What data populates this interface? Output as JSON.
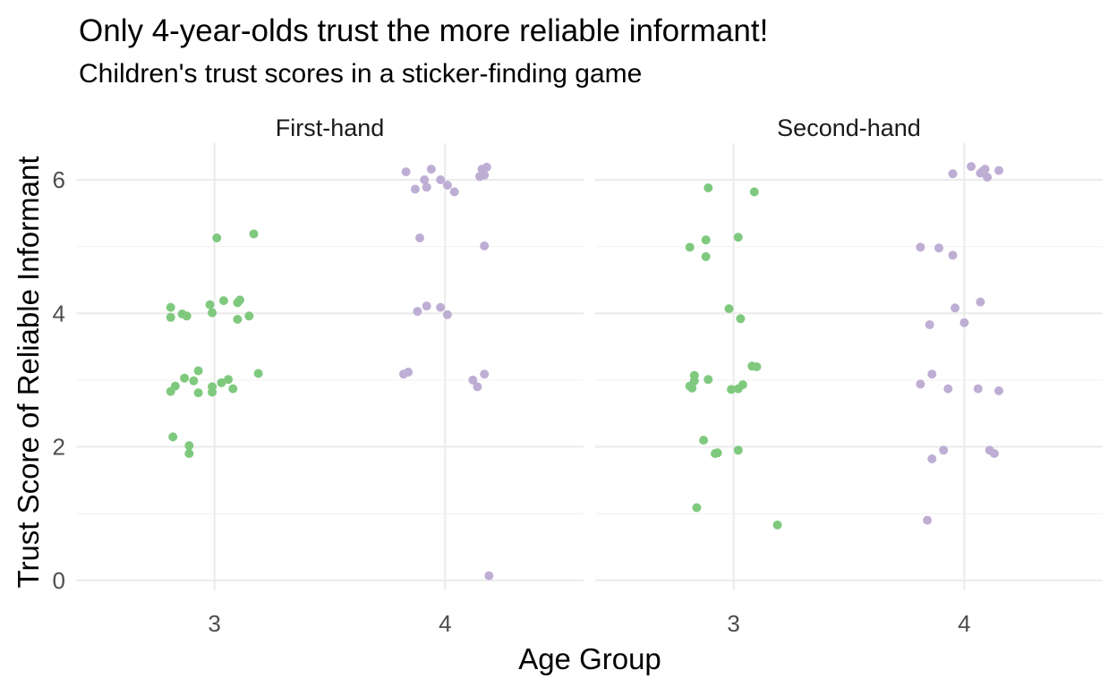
{
  "chart_data": {
    "type": "scatter",
    "title": "Only 4-year-olds trust the more reliable informant!",
    "subtitle": "Children's trust scores in a sticker-finding game",
    "xlabel": "Age Group",
    "ylabel": "Trust Score of Reliable Informant",
    "x_ticks": [
      "3",
      "4"
    ],
    "y_ticks": [
      "0",
      "2",
      "4",
      "6"
    ],
    "ylim": [
      -0.15,
      6.55
    ],
    "grid": true,
    "legend": "none",
    "colors": {
      "3": "#7fc97f",
      "4": "#beaed4"
    },
    "facets": [
      {
        "label": "First-hand",
        "points": [
          {
            "x": 3.01,
            "y": 5.13
          },
          {
            "x": 3.17,
            "y": 5.19
          },
          {
            "x": 2.81,
            "y": 4.09
          },
          {
            "x": 2.81,
            "y": 3.94
          },
          {
            "x": 2.86,
            "y": 3.99
          },
          {
            "x": 2.88,
            "y": 3.96
          },
          {
            "x": 2.98,
            "y": 4.13
          },
          {
            "x": 2.99,
            "y": 4.01
          },
          {
            "x": 3.04,
            "y": 4.19
          },
          {
            "x": 3.1,
            "y": 4.16
          },
          {
            "x": 3.11,
            "y": 4.2
          },
          {
            "x": 3.1,
            "y": 3.91
          },
          {
            "x": 3.15,
            "y": 3.96
          },
          {
            "x": 2.81,
            "y": 2.83
          },
          {
            "x": 2.83,
            "y": 2.91
          },
          {
            "x": 2.87,
            "y": 3.03
          },
          {
            "x": 2.91,
            "y": 2.99
          },
          {
            "x": 2.93,
            "y": 2.81
          },
          {
            "x": 2.93,
            "y": 3.14
          },
          {
            "x": 2.99,
            "y": 2.82
          },
          {
            "x": 2.99,
            "y": 2.9
          },
          {
            "x": 3.03,
            "y": 2.96
          },
          {
            "x": 3.06,
            "y": 3.01
          },
          {
            "x": 3.08,
            "y": 2.87
          },
          {
            "x": 3.19,
            "y": 3.1
          },
          {
            "x": 2.82,
            "y": 2.15
          },
          {
            "x": 2.89,
            "y": 2.02
          },
          {
            "x": 2.89,
            "y": 1.9
          },
          {
            "x": 3.83,
            "y": 6.12
          },
          {
            "x": 3.87,
            "y": 5.86
          },
          {
            "x": 3.91,
            "y": 6.0
          },
          {
            "x": 3.92,
            "y": 5.89
          },
          {
            "x": 3.94,
            "y": 6.16
          },
          {
            "x": 3.98,
            "y": 6.0
          },
          {
            "x": 4.01,
            "y": 5.92
          },
          {
            "x": 4.04,
            "y": 5.82
          },
          {
            "x": 4.15,
            "y": 6.05
          },
          {
            "x": 4.16,
            "y": 6.16
          },
          {
            "x": 4.17,
            "y": 6.07
          },
          {
            "x": 4.18,
            "y": 6.19
          },
          {
            "x": 3.89,
            "y": 5.13
          },
          {
            "x": 4.17,
            "y": 5.01
          },
          {
            "x": 3.88,
            "y": 4.03
          },
          {
            "x": 3.92,
            "y": 4.11
          },
          {
            "x": 3.98,
            "y": 4.09
          },
          {
            "x": 4.01,
            "y": 3.98
          },
          {
            "x": 3.82,
            "y": 3.09
          },
          {
            "x": 3.84,
            "y": 3.12
          },
          {
            "x": 4.12,
            "y": 3.0
          },
          {
            "x": 4.14,
            "y": 2.9
          },
          {
            "x": 4.17,
            "y": 3.09
          },
          {
            "x": 4.19,
            "y": 0.07
          }
        ]
      },
      {
        "label": "Second-hand",
        "points": [
          {
            "x": 2.89,
            "y": 5.88
          },
          {
            "x": 3.09,
            "y": 5.82
          },
          {
            "x": 2.81,
            "y": 4.99
          },
          {
            "x": 2.88,
            "y": 5.1
          },
          {
            "x": 2.88,
            "y": 4.85
          },
          {
            "x": 3.02,
            "y": 5.14
          },
          {
            "x": 2.98,
            "y": 4.07
          },
          {
            "x": 3.03,
            "y": 3.92
          },
          {
            "x": 2.81,
            "y": 2.91
          },
          {
            "x": 2.82,
            "y": 2.88
          },
          {
            "x": 2.83,
            "y": 3.07
          },
          {
            "x": 2.83,
            "y": 2.99
          },
          {
            "x": 2.89,
            "y": 3.01
          },
          {
            "x": 2.99,
            "y": 2.86
          },
          {
            "x": 3.02,
            "y": 2.87
          },
          {
            "x": 3.04,
            "y": 2.93
          },
          {
            "x": 3.08,
            "y": 3.21
          },
          {
            "x": 3.1,
            "y": 3.2
          },
          {
            "x": 2.87,
            "y": 2.1
          },
          {
            "x": 2.92,
            "y": 1.9
          },
          {
            "x": 2.93,
            "y": 1.91
          },
          {
            "x": 3.02,
            "y": 1.95
          },
          {
            "x": 2.84,
            "y": 1.09
          },
          {
            "x": 3.19,
            "y": 0.83
          },
          {
            "x": 3.95,
            "y": 6.09
          },
          {
            "x": 4.03,
            "y": 6.2
          },
          {
            "x": 4.07,
            "y": 6.1
          },
          {
            "x": 4.08,
            "y": 6.13
          },
          {
            "x": 4.09,
            "y": 6.16
          },
          {
            "x": 4.1,
            "y": 6.04
          },
          {
            "x": 4.15,
            "y": 6.14
          },
          {
            "x": 3.81,
            "y": 4.99
          },
          {
            "x": 3.89,
            "y": 4.98
          },
          {
            "x": 3.95,
            "y": 4.87
          },
          {
            "x": 3.85,
            "y": 3.83
          },
          {
            "x": 3.96,
            "y": 4.08
          },
          {
            "x": 4.0,
            "y": 3.86
          },
          {
            "x": 4.07,
            "y": 4.17
          },
          {
            "x": 3.81,
            "y": 2.94
          },
          {
            "x": 3.86,
            "y": 3.09
          },
          {
            "x": 3.93,
            "y": 2.87
          },
          {
            "x": 4.06,
            "y": 2.87
          },
          {
            "x": 4.15,
            "y": 2.84
          },
          {
            "x": 3.86,
            "y": 1.82
          },
          {
            "x": 3.91,
            "y": 1.95
          },
          {
            "x": 4.11,
            "y": 1.95
          },
          {
            "x": 4.13,
            "y": 1.9
          },
          {
            "x": 3.84,
            "y": 0.9
          }
        ]
      }
    ]
  }
}
